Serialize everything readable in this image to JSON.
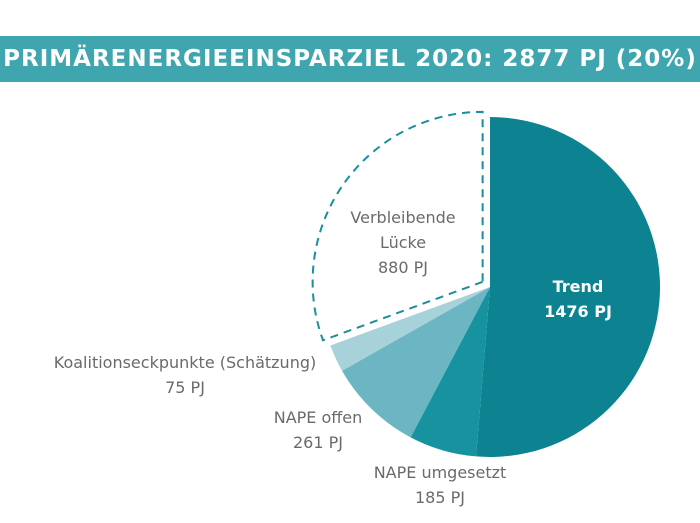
{
  "chart_data": {
    "type": "pie",
    "title": "PRIMÄRENERGIEEINSPARZIEL 2020: 2877 PJ (20%)",
    "categories": [
      "Trend",
      "NAPE umgesetzt",
      "NAPE offen",
      "Koalitionseckpunkte (Schätzung)",
      "Verbleibende Lücke"
    ],
    "values": [
      1476,
      185,
      261,
      75,
      880
    ],
    "value_labels": [
      "1476 PJ",
      "185 PJ",
      "261 PJ",
      "75 PJ",
      "880 PJ"
    ],
    "colors": [
      "#0d8290",
      "#17939f",
      "#6cb5c3",
      "#a8d2da",
      "#ffffff"
    ]
  }
}
